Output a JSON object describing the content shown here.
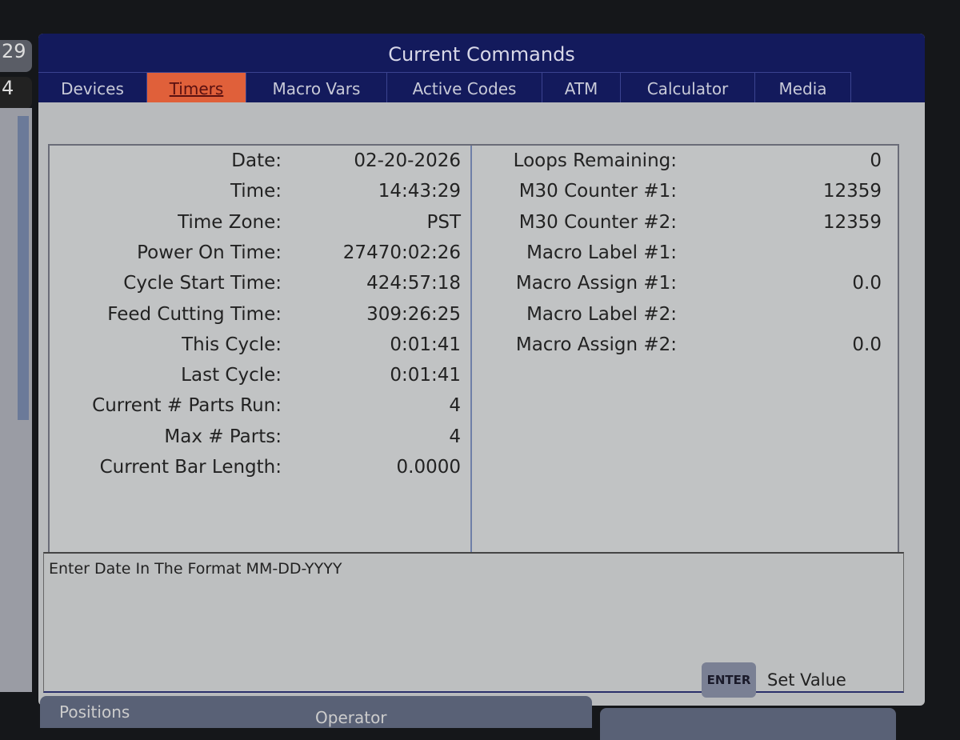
{
  "side": {
    "top_number": "29",
    "second_number": "4"
  },
  "title": "Current Commands",
  "tabs": [
    {
      "label": "Devices"
    },
    {
      "label": "Timers",
      "active": true
    },
    {
      "label": "Macro Vars"
    },
    {
      "label": "Active Codes"
    },
    {
      "label": "ATM"
    },
    {
      "label": "Calculator"
    },
    {
      "label": "Media"
    }
  ],
  "timers": [
    {
      "label": "Date:",
      "value": "02-20-2026"
    },
    {
      "label": "Time:",
      "value": "14:43:29"
    },
    {
      "label": "Time Zone:",
      "value": "PST"
    },
    {
      "label": "Power On Time:",
      "value": "27470:02:26"
    },
    {
      "label": "Cycle Start Time:",
      "value": "424:57:18"
    },
    {
      "label": "Feed Cutting Time:",
      "value": "309:26:25"
    },
    {
      "label": "This Cycle:",
      "value": "0:01:41"
    },
    {
      "label": "Last Cycle:",
      "value": "0:01:41"
    },
    {
      "label": "Current # Parts Run:",
      "value": "4"
    },
    {
      "label": "Max # Parts:",
      "value": "4"
    },
    {
      "label": "Current Bar Length:",
      "value": "0.0000"
    }
  ],
  "counters": [
    {
      "label": "Loops Remaining:",
      "value": "0"
    },
    {
      "label": "M30 Counter #1:",
      "value": "12359"
    },
    {
      "label": "M30 Counter #2:",
      "value": "12359"
    },
    {
      "label": "Macro Label #1:",
      "value": ""
    },
    {
      "label": "Macro Assign #1:",
      "value": "0.0"
    },
    {
      "label": "Macro Label #2:",
      "value": ""
    },
    {
      "label": "Macro Assign #2:",
      "value": "0.0"
    }
  ],
  "message": "Enter Date In The Format MM-DD-YYYY",
  "enter_key": "ENTER",
  "enter_action": "Set Value",
  "bottom_tabs": [
    {
      "label": "Positions"
    },
    {
      "label": "Operator"
    },
    {
      "label": ""
    }
  ],
  "colors": {
    "title_bar": "#131a5c",
    "active_tab": "#e0603a",
    "panel": "#c1c3c4"
  }
}
